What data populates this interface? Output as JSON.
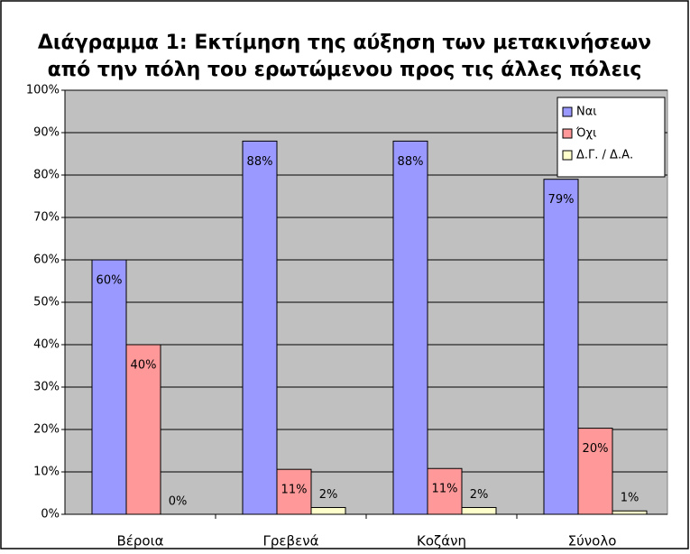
{
  "chart_data": {
    "type": "bar",
    "title": "Διάγραμμα 1: Εκτίμηση της αύξηση των μετακινήσεων",
    "subtitle": "από την πόλη του ερωτώμενου προς τις άλλες πόλεις",
    "categories": [
      "Βέροια",
      "Γρεβενά",
      "Κοζάνη",
      "Σύνολο"
    ],
    "series": [
      {
        "name": "Ναι",
        "color": "#9999ff",
        "values": [
          60,
          88,
          88,
          79
        ],
        "value_labels": [
          "60%",
          "88%",
          "88%",
          "79%"
        ]
      },
      {
        "name": "Όχι",
        "color": "#ff9999",
        "values": [
          40,
          10.6,
          10.8,
          20.3
        ],
        "value_labels": [
          "40%",
          "11%",
          "11%",
          "20%"
        ]
      },
      {
        "name": "Δ.Γ. / Δ.Α.",
        "color": "#ffffcc",
        "values": [
          0,
          1.6,
          1.6,
          0.8
        ],
        "value_labels": [
          "0%",
          "2%",
          "2%",
          "1%"
        ]
      }
    ],
    "ylim": [
      0,
      100
    ],
    "yticks": [
      {
        "value": 0,
        "label": "0%"
      },
      {
        "value": 10,
        "label": "10%"
      },
      {
        "value": 20,
        "label": "20%"
      },
      {
        "value": 30,
        "label": "30%"
      },
      {
        "value": 40,
        "label": "40%"
      },
      {
        "value": 50,
        "label": "50%"
      },
      {
        "value": 60,
        "label": "60%"
      },
      {
        "value": 70,
        "label": "70%"
      },
      {
        "value": 80,
        "label": "80%"
      },
      {
        "value": 90,
        "label": "90%"
      },
      {
        "value": 100,
        "label": "100%"
      }
    ],
    "grid": true,
    "legend": "top-right"
  }
}
